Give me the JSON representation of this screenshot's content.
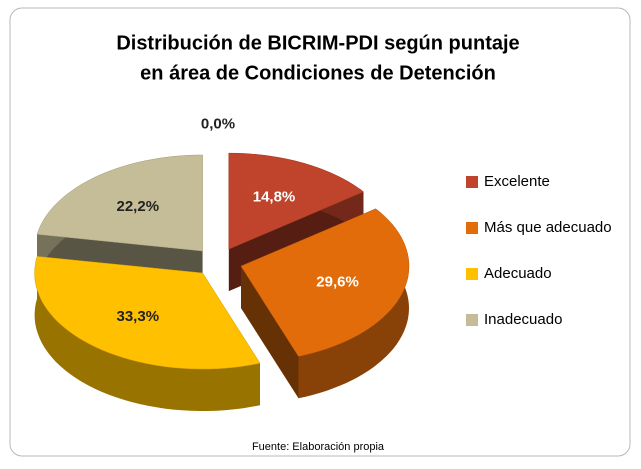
{
  "chart_data": {
    "type": "pie3d",
    "title": [
      "Distribución de BICRIM-PDI según puntaje",
      "en área de Condiciones de Detención"
    ],
    "categories": [
      "Excelente",
      "Más que adecuado",
      "Adecuado",
      "Inadecuado",
      null
    ],
    "values": [
      14.8,
      29.6,
      33.3,
      22.2,
      0
    ],
    "value_labels": [
      "14,8%",
      "29,6%",
      "33,3%",
      "22,2%",
      "0,0%"
    ],
    "colors": [
      "#c0432b",
      "#e36c0a",
      "#ffc000",
      "#c4bd97",
      "#4f81bd"
    ],
    "legend": "right",
    "source": "Fuente: Elaboración propia"
  }
}
